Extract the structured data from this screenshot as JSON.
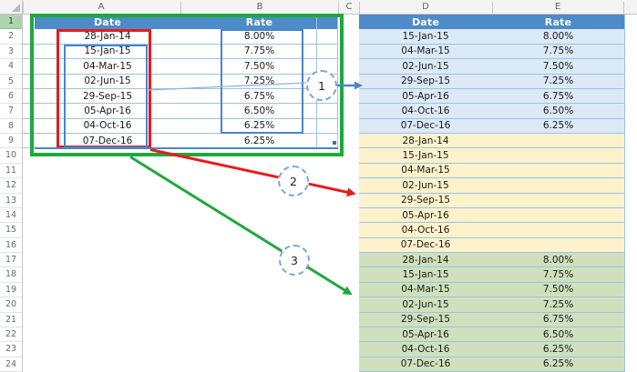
{
  "sheet": {
    "column_letters": [
      "A",
      "B",
      "C",
      "D",
      "E"
    ],
    "row_numbers": [
      "1",
      "2",
      "3",
      "4",
      "5",
      "6",
      "7",
      "8",
      "9",
      "10",
      "11",
      "12",
      "13",
      "14",
      "15",
      "16",
      "17",
      "18",
      "19",
      "20",
      "21",
      "22",
      "23",
      "24"
    ],
    "selected_row_number": "1"
  },
  "left_table": {
    "headers": {
      "date": "Date",
      "rate": "Rate"
    },
    "rows": [
      {
        "date": "28-Jan-14",
        "rate": "8.00%"
      },
      {
        "date": "15-Jan-15",
        "rate": "7.75%"
      },
      {
        "date": "04-Mar-15",
        "rate": "7.50%"
      },
      {
        "date": "02-Jun-15",
        "rate": "7.25%"
      },
      {
        "date": "29-Sep-15",
        "rate": "6.75%"
      },
      {
        "date": "05-Apr-16",
        "rate": "6.50%"
      },
      {
        "date": "04-Oct-16",
        "rate": "6.25%"
      },
      {
        "date": "07-Dec-16",
        "rate": "6.25%"
      }
    ]
  },
  "right_table": {
    "headers": {
      "date": "Date",
      "rate": "Rate"
    },
    "blue_rows": [
      {
        "date": "15-Jan-15",
        "rate": "8.00%"
      },
      {
        "date": "04-Mar-15",
        "rate": "7.75%"
      },
      {
        "date": "02-Jun-15",
        "rate": "7.50%"
      },
      {
        "date": "29-Sep-15",
        "rate": "7.25%"
      },
      {
        "date": "05-Apr-16",
        "rate": "6.75%"
      },
      {
        "date": "04-Oct-16",
        "rate": "6.50%"
      },
      {
        "date": "07-Dec-16",
        "rate": "6.25%"
      }
    ],
    "yellow_rows": [
      {
        "date": "28-Jan-14",
        "rate": ""
      },
      {
        "date": "15-Jan-15",
        "rate": ""
      },
      {
        "date": "04-Mar-15",
        "rate": ""
      },
      {
        "date": "02-Jun-15",
        "rate": ""
      },
      {
        "date": "29-Sep-15",
        "rate": ""
      },
      {
        "date": "05-Apr-16",
        "rate": ""
      },
      {
        "date": "04-Oct-16",
        "rate": ""
      },
      {
        "date": "07-Dec-16",
        "rate": ""
      }
    ],
    "green_rows": [
      {
        "date": "28-Jan-14",
        "rate": "8.00%"
      },
      {
        "date": "15-Jan-15",
        "rate": "7.75%"
      },
      {
        "date": "04-Mar-15",
        "rate": "7.50%"
      },
      {
        "date": "02-Jun-15",
        "rate": "7.25%"
      },
      {
        "date": "29-Sep-15",
        "rate": "6.75%"
      },
      {
        "date": "05-Apr-16",
        "rate": "6.50%"
      },
      {
        "date": "04-Oct-16",
        "rate": "6.25%"
      },
      {
        "date": "07-Dec-16",
        "rate": "6.25%"
      }
    ]
  },
  "callouts": {
    "one": "1",
    "two": "2",
    "three": "3"
  },
  "colors": {
    "header_blue": "#4d8bc9",
    "light_blue_row": "#dce9f6",
    "yellow_row": "#fdf2cc",
    "green_row": "#d0e0bd",
    "separator_blue": "#9cc2e5",
    "selection_blue": "#4a86c8",
    "red_annotation": "#e81b1b",
    "green_annotation": "#1ea83c",
    "leader_blue": "#8fb4dc",
    "circle_border": "#7aa6d6",
    "strip_bg": "#f4f4f4",
    "strip_border": "#c6c6c6",
    "strip_text": "#666666",
    "row1_header_green": "#aed4ae",
    "cell_text": "#1a1a1a"
  }
}
